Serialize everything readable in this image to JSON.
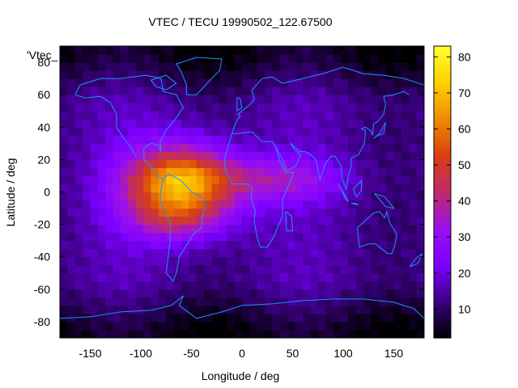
{
  "chart_data": {
    "type": "heatmap",
    "title": "VTEC / TECU 19990502_122.67500",
    "xlabel": "Longitude / deg",
    "ylabel": "Latitude / deg",
    "key_label": "'Vtec_",
    "xlim": [
      -180,
      180
    ],
    "ylim": [
      -90,
      90
    ],
    "x_ticks": [
      -150,
      -100,
      -50,
      0,
      50,
      100,
      150
    ],
    "y_ticks": [
      -80,
      -60,
      -40,
      -20,
      0,
      20,
      40,
      60,
      80
    ],
    "colorbar": {
      "range": [
        2,
        83
      ],
      "ticks": [
        10,
        20,
        30,
        40,
        50,
        60,
        70,
        80
      ],
      "palette": [
        "#000000",
        "#3a0080",
        "#7b00ff",
        "#9a10ee",
        "#c02a6a",
        "#d84010",
        "#f08a00",
        "#ffd000",
        "#ffff30"
      ]
    },
    "crest": {
      "peak_center_lon": -60,
      "peak_center_lat": 3,
      "peak_value": 82,
      "background_value": 14,
      "polar_value": 4
    },
    "coastline_color": "#1e90ff",
    "grid": false,
    "legend": "top-left"
  }
}
